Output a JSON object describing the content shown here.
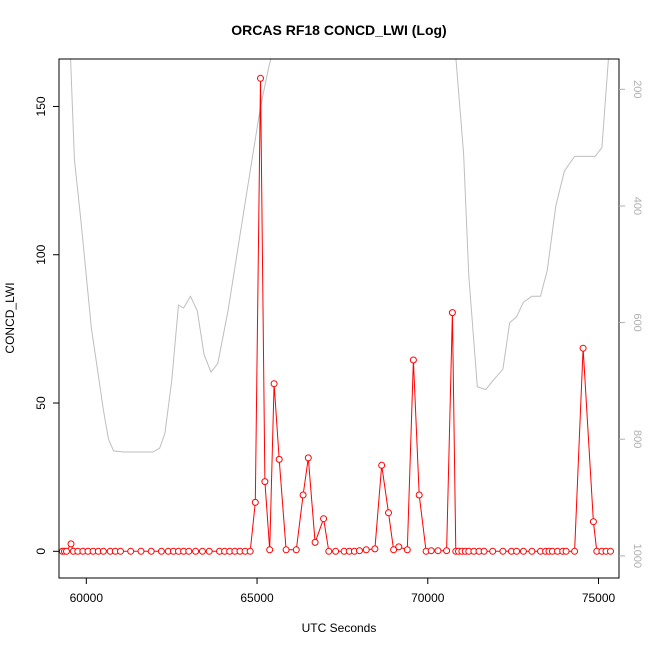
{
  "chart_data": {
    "type": "line",
    "title": "ORCAS RF18 CONCD_LWI (Log)",
    "xlabel": "UTC Seconds",
    "ylabel": "CONCD_LWI",
    "xlim": [
      59200,
      75600
    ],
    "ylim": [
      -9,
      166
    ],
    "x_ticks": [
      60000,
      65000,
      70000,
      75000
    ],
    "y_ticks": [
      0,
      50,
      100,
      150
    ],
    "grid": false,
    "legend": "none",
    "colors": {
      "series": "#ff0000",
      "secondary": "#bebebe",
      "axis": "#000000"
    },
    "series": [
      {
        "points": [
          [
            59300,
            0
          ],
          [
            59360,
            0
          ],
          [
            59420,
            0
          ],
          [
            59550,
            2.5
          ],
          [
            59620,
            0
          ],
          [
            59750,
            0
          ],
          [
            59900,
            0
          ],
          [
            60050,
            0
          ],
          [
            60200,
            0
          ],
          [
            60350,
            0
          ],
          [
            60500,
            0
          ],
          [
            60700,
            0
          ],
          [
            60850,
            0
          ],
          [
            61000,
            0
          ],
          [
            61300,
            0
          ],
          [
            61600,
            0
          ],
          [
            61900,
            0
          ],
          [
            62200,
            0
          ],
          [
            62400,
            0
          ],
          [
            62550,
            0
          ],
          [
            62700,
            0
          ],
          [
            62850,
            0
          ],
          [
            63000,
            0
          ],
          [
            63200,
            0
          ],
          [
            63400,
            0
          ],
          [
            63600,
            0
          ],
          [
            63900,
            0
          ],
          [
            64050,
            0
          ],
          [
            64200,
            0
          ],
          [
            64350,
            0
          ],
          [
            64500,
            0
          ],
          [
            64650,
            0
          ],
          [
            64800,
            0
          ],
          [
            64950,
            16.5
          ],
          [
            65100,
            159.5
          ],
          [
            65230,
            23.5
          ],
          [
            65370,
            0.5
          ],
          [
            65500,
            56.5
          ],
          [
            65650,
            31
          ],
          [
            65850,
            0.5
          ],
          [
            66150,
            0.5
          ],
          [
            66350,
            19
          ],
          [
            66500,
            31.5
          ],
          [
            66700,
            3
          ],
          [
            66950,
            11
          ],
          [
            67100,
            0
          ],
          [
            67300,
            0
          ],
          [
            67550,
            0
          ],
          [
            67700,
            0
          ],
          [
            67850,
            0
          ],
          [
            68000,
            0.2
          ],
          [
            68200,
            0.5
          ],
          [
            68450,
            0.8
          ],
          [
            68650,
            29
          ],
          [
            68850,
            13
          ],
          [
            69000,
            0.5
          ],
          [
            69150,
            1.5
          ],
          [
            69400,
            0.5
          ],
          [
            69580,
            64.5
          ],
          [
            69750,
            19
          ],
          [
            69950,
            0
          ],
          [
            70100,
            0.2
          ],
          [
            70300,
            0.2
          ],
          [
            70550,
            0.2
          ],
          [
            70720,
            80.5
          ],
          [
            70820,
            0
          ],
          [
            70900,
            0
          ],
          [
            71000,
            0
          ],
          [
            71100,
            0
          ],
          [
            71200,
            0
          ],
          [
            71350,
            0
          ],
          [
            71500,
            0
          ],
          [
            71650,
            0
          ],
          [
            71900,
            0
          ],
          [
            72200,
            0
          ],
          [
            72450,
            0
          ],
          [
            72600,
            0
          ],
          [
            72800,
            0
          ],
          [
            73050,
            0
          ],
          [
            73300,
            0
          ],
          [
            73450,
            0
          ],
          [
            73550,
            0
          ],
          [
            73650,
            0
          ],
          [
            73800,
            0
          ],
          [
            73950,
            0
          ],
          [
            74050,
            0
          ],
          [
            74300,
            0
          ],
          [
            74550,
            68.5
          ],
          [
            74850,
            10
          ],
          [
            74950,
            0
          ],
          [
            75100,
            0
          ],
          [
            75220,
            0
          ],
          [
            75350,
            0
          ]
        ]
      }
    ],
    "secondary_axis": {
      "side": "right",
      "reversed": true,
      "ylim": [
        148,
        1038
      ],
      "ticks": [
        200,
        400,
        600,
        800,
        1000
      ],
      "series": {
        "points": [
          [
            59450,
            10
          ],
          [
            59650,
            320
          ],
          [
            59850,
            430
          ],
          [
            60000,
            520
          ],
          [
            60150,
            610
          ],
          [
            60300,
            670
          ],
          [
            60500,
            750
          ],
          [
            60650,
            800
          ],
          [
            60800,
            820
          ],
          [
            61100,
            822
          ],
          [
            61400,
            822
          ],
          [
            61700,
            822
          ],
          [
            61950,
            822
          ],
          [
            62150,
            815
          ],
          [
            62300,
            790
          ],
          [
            62500,
            700
          ],
          [
            62700,
            570
          ],
          [
            62850,
            575
          ],
          [
            63050,
            555
          ],
          [
            63250,
            580
          ],
          [
            63450,
            655
          ],
          [
            63650,
            685
          ],
          [
            63850,
            670
          ],
          [
            64150,
            580
          ],
          [
            64500,
            450
          ],
          [
            64800,
            340
          ],
          [
            65100,
            230
          ],
          [
            65350,
            160
          ],
          [
            65600,
            105
          ],
          [
            65900,
            55
          ],
          [
            66200,
            30
          ],
          [
            66450,
            70
          ],
          [
            66600,
            110
          ],
          [
            66850,
            135
          ],
          [
            67050,
            105
          ],
          [
            67300,
            75
          ],
          [
            67550,
            60
          ],
          [
            67800,
            80
          ],
          [
            68050,
            110
          ],
          [
            68350,
            70
          ],
          [
            68650,
            90
          ],
          [
            68900,
            120
          ],
          [
            69200,
            50
          ],
          [
            69500,
            55
          ],
          [
            69850,
            75
          ],
          [
            70200,
            95
          ],
          [
            70550,
            85
          ],
          [
            70800,
            130
          ],
          [
            71050,
            310
          ],
          [
            71200,
            520
          ],
          [
            71450,
            710
          ],
          [
            71700,
            715
          ],
          [
            71900,
            700
          ],
          [
            72200,
            680
          ],
          [
            72400,
            600
          ],
          [
            72600,
            590
          ],
          [
            72800,
            565
          ],
          [
            73050,
            555
          ],
          [
            73300,
            555
          ],
          [
            73500,
            510
          ],
          [
            73750,
            400
          ],
          [
            74000,
            340
          ],
          [
            74300,
            315
          ],
          [
            74600,
            315
          ],
          [
            74900,
            315
          ],
          [
            75100,
            300
          ],
          [
            75350,
            100
          ]
        ]
      }
    }
  }
}
